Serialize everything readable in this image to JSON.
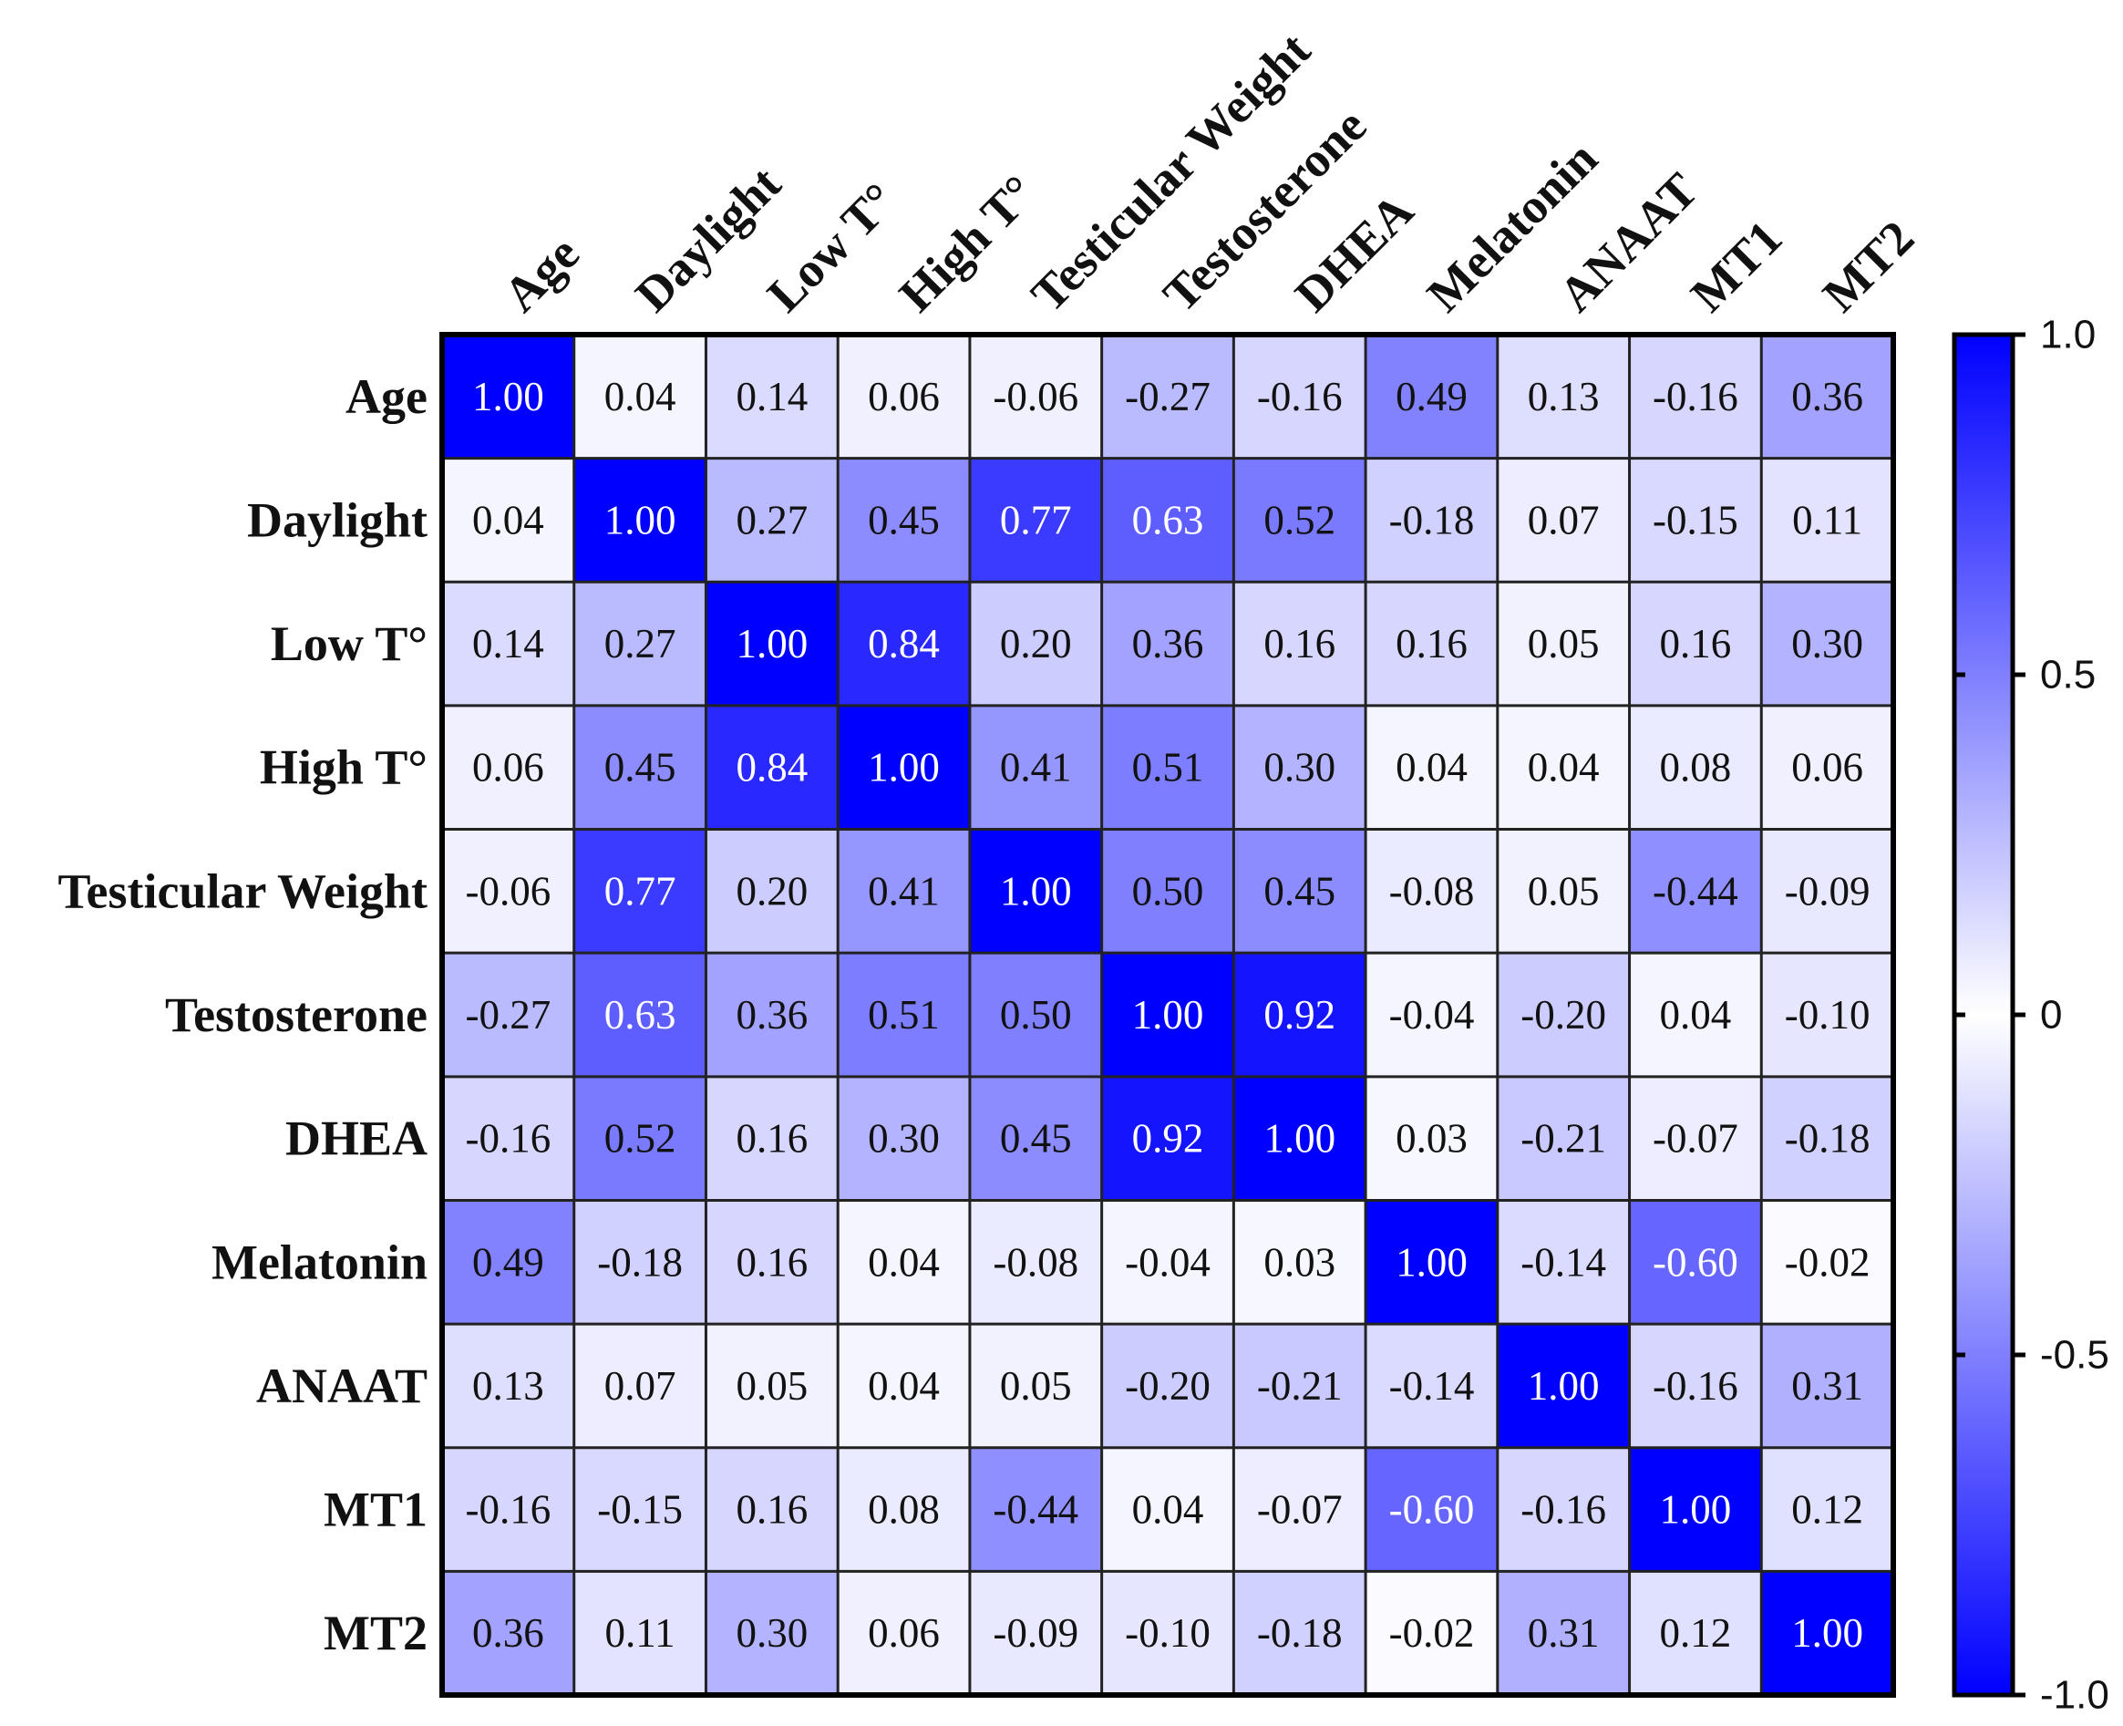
{
  "chart_data": {
    "type": "heatmap",
    "title": "",
    "colors": {
      "positive": "#0000ff",
      "neutral": "#ffffff",
      "negative": "#0000ff"
    },
    "row_labels": [
      "Age",
      "Daylight",
      "Low T°",
      "High T°",
      "Testicular Weight",
      "Testosterone",
      "DHEA",
      "Melatonin",
      "ANAAT",
      "MT1",
      "MT2"
    ],
    "col_labels": [
      "Age",
      "Daylight",
      "Low T°",
      "High T°",
      "Testicular Weight",
      "Testosterone",
      "DHEA",
      "Melatonin",
      "ANAAT",
      "MT1",
      "MT2"
    ],
    "values": [
      [
        1.0,
        0.04,
        0.14,
        0.06,
        -0.06,
        -0.27,
        -0.16,
        0.49,
        0.13,
        -0.16,
        0.36
      ],
      [
        0.04,
        1.0,
        0.27,
        0.45,
        0.77,
        0.63,
        0.52,
        -0.18,
        0.07,
        -0.15,
        0.11
      ],
      [
        0.14,
        0.27,
        1.0,
        0.84,
        0.2,
        0.36,
        0.16,
        0.16,
        0.05,
        0.16,
        0.3
      ],
      [
        0.06,
        0.45,
        0.84,
        1.0,
        0.41,
        0.51,
        0.3,
        0.04,
        0.04,
        0.08,
        0.06
      ],
      [
        -0.06,
        0.77,
        0.2,
        0.41,
        1.0,
        0.5,
        0.45,
        -0.08,
        0.05,
        -0.44,
        -0.09
      ],
      [
        -0.27,
        0.63,
        0.36,
        0.51,
        0.5,
        1.0,
        0.92,
        -0.04,
        -0.2,
        0.04,
        -0.1
      ],
      [
        -0.16,
        0.52,
        0.16,
        0.3,
        0.45,
        0.92,
        1.0,
        0.03,
        -0.21,
        -0.07,
        -0.18
      ],
      [
        0.49,
        -0.18,
        0.16,
        0.04,
        -0.08,
        -0.04,
        0.03,
        1.0,
        -0.14,
        -0.6,
        -0.02
      ],
      [
        0.13,
        0.07,
        0.05,
        0.04,
        0.05,
        -0.2,
        -0.21,
        -0.14,
        1.0,
        -0.16,
        0.31
      ],
      [
        -0.16,
        -0.15,
        0.16,
        0.08,
        -0.44,
        0.04,
        -0.07,
        -0.6,
        -0.16,
        1.0,
        0.12
      ],
      [
        0.36,
        0.11,
        0.3,
        0.06,
        -0.09,
        -0.1,
        -0.18,
        -0.02,
        0.31,
        0.12,
        1.0
      ]
    ],
    "colorbar": {
      "range": [
        -1.0,
        1.0
      ],
      "ticks": [
        1.0,
        0.5,
        0,
        -0.5,
        -1.0
      ],
      "tick_labels": [
        "1.0",
        "0.5",
        "0",
        "-0.5",
        "-1.0"
      ]
    }
  }
}
